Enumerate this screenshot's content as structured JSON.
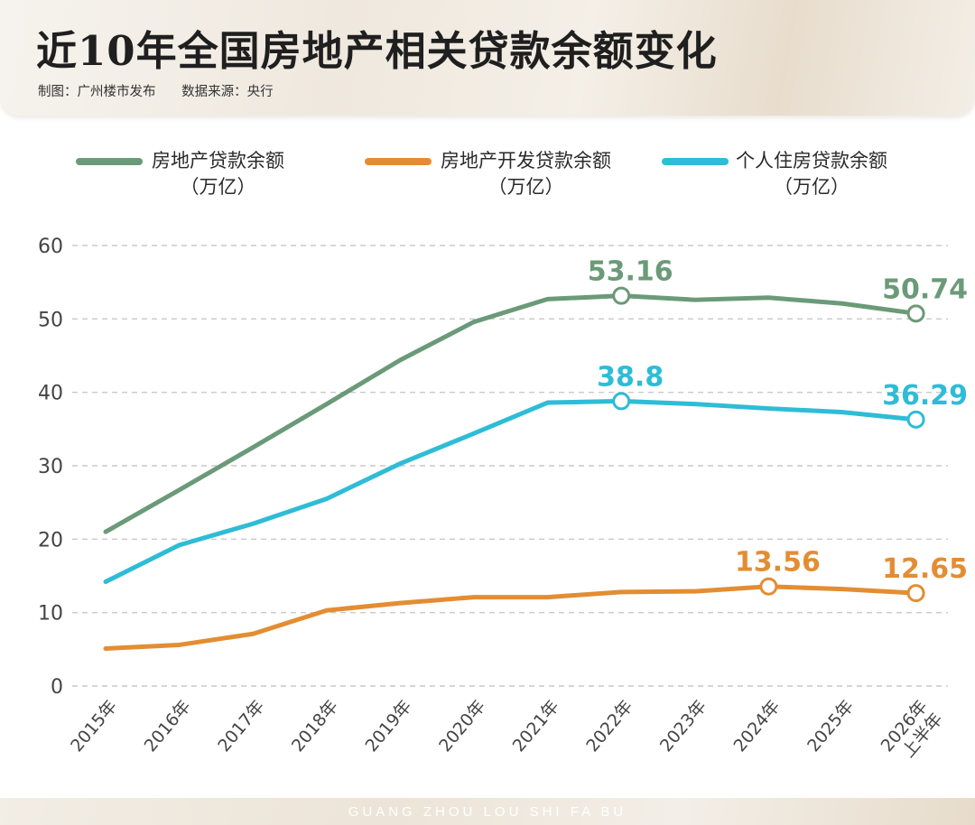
{
  "header": {
    "title": "近10年全国房地产相关贷款余额变化",
    "credit_maker": "制图：广州楼市发布",
    "credit_source": "数据来源：央行"
  },
  "footer": {
    "text": "GUANG ZHOU LOU SHI FA BU"
  },
  "chart_data": {
    "type": "line",
    "title": "近10年全国房地产相关贷款余额变化",
    "categories": [
      "2015年",
      "2016年",
      "2017年",
      "2018年",
      "2019年",
      "2020年",
      "2021年",
      "2022年",
      "2023年",
      "2024年",
      "2025年",
      "2026年上半年"
    ],
    "category_lines": [
      [
        "2015年"
      ],
      [
        "2016年"
      ],
      [
        "2017年"
      ],
      [
        "2018年"
      ],
      [
        "2019年"
      ],
      [
        "2020年"
      ],
      [
        "2021年"
      ],
      [
        "2022年"
      ],
      [
        "2023年"
      ],
      [
        "2024年"
      ],
      [
        "2025年"
      ],
      [
        "2026年",
        "上半年"
      ]
    ],
    "ylim": [
      0,
      60
    ],
    "yticks": [
      "0",
      "10",
      "20",
      "30",
      "40",
      "50",
      "60"
    ],
    "grid": true,
    "legend_position": "top",
    "series": [
      {
        "name": "房地产贷款余额",
        "unit": "（万亿）",
        "color": "#6b9a78",
        "values": [
          21.0,
          26.7,
          32.5,
          38.4,
          44.4,
          49.6,
          52.7,
          53.16,
          52.6,
          52.9,
          52.1,
          50.74
        ],
        "labels": [
          {
            "index": 7,
            "text": "53.16"
          },
          {
            "index": 11,
            "text": "50.74"
          }
        ]
      },
      {
        "name": "房地产开发贷款余额",
        "unit": "（万亿）",
        "color": "#e38d33",
        "values": [
          5.1,
          5.6,
          7.1,
          10.3,
          11.3,
          12.1,
          12.1,
          12.8,
          12.9,
          13.56,
          13.2,
          12.65
        ],
        "labels": [
          {
            "index": 9,
            "text": "13.56"
          },
          {
            "index": 11,
            "text": "12.65"
          }
        ]
      },
      {
        "name": "个人住房贷款余额",
        "unit": "（万亿）",
        "color": "#2ebcd6",
        "values": [
          14.2,
          19.2,
          22.1,
          25.5,
          30.3,
          34.4,
          38.6,
          38.8,
          38.4,
          37.8,
          37.3,
          36.29
        ],
        "labels": [
          {
            "index": 7,
            "text": "38.8"
          },
          {
            "index": 11,
            "text": "36.29"
          }
        ]
      }
    ]
  }
}
